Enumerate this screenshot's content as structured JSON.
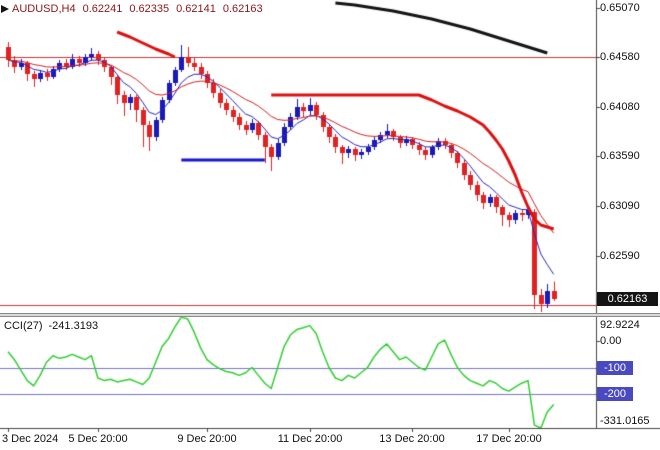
{
  "header": {
    "symbol_tf": "AUDUSD,H4",
    "open": "0.62241",
    "high": "0.62335",
    "low": "0.62141",
    "close": "0.62163"
  },
  "chart_data": {
    "type": "candlestick",
    "title": "AUDUSD H4 candlestick chart with moving averages, trailing stop lines and CCI(27) subwindow",
    "price_panel": {
      "y_range": [
        0.62,
        0.6515
      ],
      "grid_labels": [
        "0.65070",
        "0.64580",
        "0.64080",
        "0.63590",
        "0.63090",
        "0.62590"
      ],
      "current_price": "0.62163",
      "up_color": "#1a1ab8",
      "down_color": "#e02222",
      "hlines": [
        {
          "price": 0.6458,
          "color": "#cc3333",
          "width": 1
        },
        {
          "price": 0.621,
          "color": "#cc3333",
          "width": 1
        }
      ],
      "ma_fast": {
        "period": 6,
        "color": "#2626b8"
      },
      "ma_slow": {
        "period": 16,
        "color": "#cc2222"
      },
      "trend_lines": [
        {
          "name": "upper-stop-line-black",
          "color": "#141414",
          "width": 3,
          "points": [
            [
              51,
              0.6512
            ],
            [
              54,
              0.651
            ],
            [
              57,
              0.6507
            ],
            [
              60,
              0.6504
            ],
            [
              63,
              0.65
            ],
            [
              66,
              0.6496
            ],
            [
              69,
              0.6491
            ],
            [
              72,
              0.6486
            ],
            [
              75,
              0.648
            ],
            [
              78,
              0.6474
            ],
            [
              81,
              0.6468
            ],
            [
              84,
              0.6462
            ]
          ]
        },
        {
          "name": "stop-step-left-red",
          "color": "#dd1111",
          "width": 3,
          "points": [
            [
              17,
              0.6483
            ],
            [
              19,
              0.6478
            ],
            [
              21,
              0.6472
            ],
            [
              23,
              0.6466
            ],
            [
              25,
              0.6461
            ],
            [
              26,
              0.6458
            ]
          ]
        },
        {
          "name": "stop-line-red",
          "color": "#dd1111",
          "width": 3,
          "points": [
            [
              41,
              0.642
            ],
            [
              64,
              0.642
            ],
            [
              66,
              0.6415
            ],
            [
              68,
              0.6409
            ],
            [
              70,
              0.6404
            ],
            [
              72,
              0.6398
            ],
            [
              74,
              0.639
            ],
            [
              75,
              0.6383
            ],
            [
              76,
              0.6375
            ],
            [
              77,
              0.6366
            ],
            [
              78,
              0.6354
            ],
            [
              79,
              0.634
            ],
            [
              80,
              0.6323
            ],
            [
              81,
              0.6308
            ],
            [
              82,
              0.6296
            ],
            [
              83,
              0.629
            ],
            [
              85,
              0.6286
            ]
          ]
        },
        {
          "name": "support-line-blue",
          "color": "#1616cc",
          "width": 3,
          "points": [
            [
              27,
              0.6355
            ],
            [
              40,
              0.6355
            ]
          ]
        }
      ],
      "candles": [
        [
          0.6468,
          0.6473,
          0.6448,
          0.6455
        ],
        [
          0.6455,
          0.6459,
          0.6442,
          0.6448
        ],
        [
          0.6448,
          0.6456,
          0.6445,
          0.6452
        ],
        [
          0.6452,
          0.6454,
          0.6434,
          0.6441
        ],
        [
          0.6441,
          0.6444,
          0.6428,
          0.6436
        ],
        [
          0.6436,
          0.6445,
          0.6433,
          0.6442
        ],
        [
          0.6442,
          0.6446,
          0.6434,
          0.6438
        ],
        [
          0.6438,
          0.6449,
          0.6436,
          0.6446
        ],
        [
          0.6446,
          0.6455,
          0.6443,
          0.6452
        ],
        [
          0.6452,
          0.6456,
          0.6445,
          0.6448
        ],
        [
          0.6448,
          0.6461,
          0.6446,
          0.6456
        ],
        [
          0.6456,
          0.6459,
          0.6448,
          0.6452
        ],
        [
          0.6452,
          0.6461,
          0.6449,
          0.6458
        ],
        [
          0.6458,
          0.6467,
          0.6454,
          0.6461
        ],
        [
          0.6461,
          0.6464,
          0.645,
          0.6455
        ],
        [
          0.6455,
          0.6457,
          0.6443,
          0.6448
        ],
        [
          0.6448,
          0.645,
          0.643,
          0.6438
        ],
        [
          0.6438,
          0.644,
          0.6411,
          0.642
        ],
        [
          0.642,
          0.6424,
          0.6399,
          0.6412
        ],
        [
          0.6412,
          0.6421,
          0.6405,
          0.6418
        ],
        [
          0.6418,
          0.642,
          0.6393,
          0.6405
        ],
        [
          0.6405,
          0.6408,
          0.6368,
          0.639
        ],
        [
          0.639,
          0.6394,
          0.6364,
          0.6378
        ],
        [
          0.6378,
          0.6398,
          0.6374,
          0.6395
        ],
        [
          0.6395,
          0.6418,
          0.6392,
          0.6415
        ],
        [
          0.6415,
          0.6435,
          0.6412,
          0.6432
        ],
        [
          0.6432,
          0.6448,
          0.6429,
          0.6445
        ],
        [
          0.6445,
          0.647,
          0.6443,
          0.6458
        ],
        [
          0.6458,
          0.6468,
          0.6448,
          0.6452
        ],
        [
          0.6452,
          0.6457,
          0.6444,
          0.6448
        ],
        [
          0.6448,
          0.6452,
          0.6436,
          0.6441
        ],
        [
          0.6441,
          0.6444,
          0.6427,
          0.6432
        ],
        [
          0.6432,
          0.6436,
          0.6417,
          0.6422
        ],
        [
          0.6422,
          0.6426,
          0.6407,
          0.6412
        ],
        [
          0.6412,
          0.6416,
          0.64,
          0.6405
        ],
        [
          0.6405,
          0.6409,
          0.6393,
          0.6398
        ],
        [
          0.6398,
          0.6402,
          0.6385,
          0.639
        ],
        [
          0.639,
          0.6394,
          0.638,
          0.6385
        ],
        [
          0.6385,
          0.6396,
          0.6382,
          0.6392
        ],
        [
          0.6392,
          0.6394,
          0.6375,
          0.638
        ],
        [
          0.638,
          0.6383,
          0.6352,
          0.6368
        ],
        [
          0.6368,
          0.6371,
          0.6344,
          0.6358
        ],
        [
          0.6358,
          0.6376,
          0.6355,
          0.6372
        ],
        [
          0.6372,
          0.6392,
          0.6369,
          0.6388
        ],
        [
          0.6388,
          0.6402,
          0.6385,
          0.6398
        ],
        [
          0.6398,
          0.6416,
          0.6395,
          0.6408
        ],
        [
          0.6408,
          0.6412,
          0.6398,
          0.6404
        ],
        [
          0.6404,
          0.6417,
          0.64,
          0.641
        ],
        [
          0.641,
          0.6413,
          0.6395,
          0.64
        ],
        [
          0.64,
          0.6403,
          0.6383,
          0.6388
        ],
        [
          0.6388,
          0.6391,
          0.6372,
          0.6378
        ],
        [
          0.6378,
          0.6381,
          0.6362,
          0.6368
        ],
        [
          0.6368,
          0.637,
          0.6351,
          0.6362
        ],
        [
          0.6362,
          0.6369,
          0.6357,
          0.6366
        ],
        [
          0.6366,
          0.6368,
          0.6354,
          0.636
        ],
        [
          0.636,
          0.6366,
          0.6356,
          0.6363
        ],
        [
          0.6363,
          0.6371,
          0.636,
          0.6368
        ],
        [
          0.6368,
          0.6378,
          0.6365,
          0.6375
        ],
        [
          0.6375,
          0.6383,
          0.6372,
          0.638
        ],
        [
          0.638,
          0.6391,
          0.6377,
          0.6384
        ],
        [
          0.6384,
          0.6386,
          0.6374,
          0.6378
        ],
        [
          0.6378,
          0.638,
          0.6367,
          0.6372
        ],
        [
          0.6372,
          0.6379,
          0.6369,
          0.6376
        ],
        [
          0.6376,
          0.6378,
          0.6366,
          0.637
        ],
        [
          0.637,
          0.6373,
          0.636,
          0.6365
        ],
        [
          0.6365,
          0.6368,
          0.6355,
          0.636
        ],
        [
          0.636,
          0.637,
          0.6357,
          0.6368
        ],
        [
          0.6368,
          0.6377,
          0.6365,
          0.6374
        ],
        [
          0.6374,
          0.6377,
          0.6366,
          0.637
        ],
        [
          0.637,
          0.6372,
          0.6357,
          0.6362
        ],
        [
          0.6362,
          0.6364,
          0.6347,
          0.6352
        ],
        [
          0.6352,
          0.6355,
          0.6335,
          0.634
        ],
        [
          0.634,
          0.6344,
          0.6325,
          0.633
        ],
        [
          0.633,
          0.6334,
          0.6314,
          0.632
        ],
        [
          0.632,
          0.6323,
          0.6306,
          0.6312
        ],
        [
          0.6312,
          0.6321,
          0.6308,
          0.6318
        ],
        [
          0.6318,
          0.632,
          0.6302,
          0.6308
        ],
        [
          0.6308,
          0.631,
          0.6289,
          0.63
        ],
        [
          0.63,
          0.6303,
          0.6288,
          0.6295
        ],
        [
          0.6295,
          0.6305,
          0.6291,
          0.6302
        ],
        [
          0.6302,
          0.6305,
          0.6294,
          0.63
        ],
        [
          0.63,
          0.6308,
          0.6296,
          0.6305
        ],
        [
          0.6303,
          0.6306,
          0.6206,
          0.622
        ],
        [
          0.622,
          0.6226,
          0.6203,
          0.6211
        ],
        [
          0.6211,
          0.6231,
          0.6207,
          0.6224
        ],
        [
          0.62241,
          0.62335,
          0.62141,
          0.62163
        ]
      ]
    },
    "cci_panel": {
      "label": "CCI(27)",
      "value": "-241.3193",
      "y_range": [
        -331.0165,
        92.9224
      ],
      "max_label": "92.9224",
      "zero_label": "0.00",
      "min_label": "-331.0165",
      "levels": [
        {
          "value": -100,
          "label": "-100"
        },
        {
          "value": -200,
          "label": "-200"
        }
      ],
      "level_color": "#7474cc",
      "badge_color": "#4a4ac0",
      "line_color": "#32cd32",
      "values": [
        -40,
        -70,
        -110,
        -150,
        -170,
        -130,
        -80,
        -55,
        -65,
        -60,
        -50,
        -60,
        -70,
        -55,
        -140,
        -150,
        -145,
        -155,
        -150,
        -145,
        -155,
        -165,
        -140,
        -80,
        -20,
        10,
        55,
        92.9224,
        85,
        35,
        -25,
        -70,
        -90,
        -105,
        -115,
        -120,
        -130,
        -120,
        -100,
        -130,
        -160,
        -180,
        -100,
        -20,
        25,
        45,
        52,
        60,
        30,
        -40,
        -100,
        -140,
        -150,
        -130,
        -140,
        -120,
        -100,
        -60,
        -30,
        -10,
        -40,
        -70,
        -60,
        -80,
        -100,
        -110,
        -60,
        -10,
        5,
        -50,
        -100,
        -130,
        -150,
        -160,
        -170,
        -150,
        -160,
        -180,
        -190,
        -175,
        -160,
        -150,
        -320,
        -331.0165,
        -270,
        -241.3193
      ]
    },
    "time_axis": {
      "labels": [
        {
          "text": "3 Dec 2024",
          "index": 0
        },
        {
          "text": "5 Dec 20:00",
          "index": 14
        },
        {
          "text": "9 Dec 20:00",
          "index": 31
        },
        {
          "text": "11 Dec 20:00",
          "index": 47
        },
        {
          "text": "13 Dec 20:00",
          "index": 63
        },
        {
          "text": "17 Dec 20:00",
          "index": 78
        }
      ]
    }
  }
}
